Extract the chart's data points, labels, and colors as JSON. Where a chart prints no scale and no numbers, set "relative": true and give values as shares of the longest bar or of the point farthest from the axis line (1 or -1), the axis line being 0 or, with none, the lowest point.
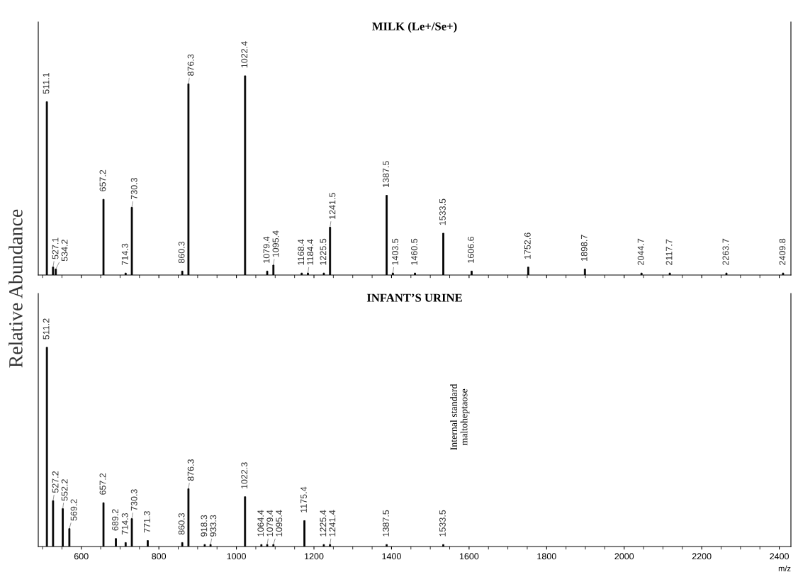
{
  "chart_data": [
    {
      "type": "bar",
      "title": "MILK (Le+/Se+)",
      "ylabel": "Relative Abundance",
      "relative": true,
      "tick_labels": false,
      "xlim": [
        489,
        2430
      ],
      "xticks": [
        {
          "value": 600,
          "label": null
        },
        {
          "value": 800,
          "label": null
        },
        {
          "value": 1000,
          "label": null
        },
        {
          "value": 1200,
          "label": null
        },
        {
          "value": 1400,
          "label": null
        },
        {
          "value": 1600,
          "label": null
        },
        {
          "value": 1800,
          "label": null
        },
        {
          "value": 2000,
          "label": null
        },
        {
          "value": 2200,
          "label": null
        },
        {
          "value": 2400,
          "label": null
        }
      ],
      "color": "#000000",
      "x": [
        511.1,
        527.1,
        534.2,
        657.2,
        714.3,
        730.3,
        860.3,
        876.3,
        1022.4,
        1079.4,
        1095.4,
        1168.4,
        1184.4,
        1225.5,
        1241.5,
        1387.5,
        1403.5,
        1460.5,
        1533.5,
        1606.6,
        1752.6,
        1898.7,
        2044.7,
        2117.7,
        2263.7,
        2409.8
      ],
      "values": [
        0.87,
        0.04,
        0.03,
        0.38,
        0.01,
        0.34,
        0.02,
        0.96,
        1,
        0.02,
        0.05,
        0.01,
        0.01,
        0.01,
        0.24,
        0.4,
        0.01,
        0.01,
        0.21,
        0.02,
        0.04,
        0.03,
        0.01,
        0.01,
        0.01,
        0.01
      ],
      "annotations": [
        {
          "text": "511.1",
          "x": 511.1,
          "y": 0.87
        },
        {
          "text": "527.1",
          "x": 527.1,
          "y": 0.04
        },
        {
          "text": "534.2",
          "x": 534.2,
          "y": 0.03
        },
        {
          "text": "657.2",
          "x": 657.2,
          "y": 0.38
        },
        {
          "text": "714.3",
          "x": 714.3,
          "y": 0.01
        },
        {
          "text": "730.3",
          "x": 730.3,
          "y": 0.34
        },
        {
          "text": "860.3",
          "x": 860.3,
          "y": 0.02
        },
        {
          "text": "876.3",
          "x": 876.3,
          "y": 0.96
        },
        {
          "text": "1022.4",
          "x": 1022.4,
          "y": 1
        },
        {
          "text": "1079.4",
          "x": 1079.4,
          "y": 0.02
        },
        {
          "text": "1095.4",
          "x": 1095.4,
          "y": 0.05
        },
        {
          "text": "1168.4",
          "x": 1168.4,
          "y": 0.01
        },
        {
          "text": "1184.4",
          "x": 1184.4,
          "y": 0.01
        },
        {
          "text": "1225.5",
          "x": 1225.5,
          "y": 0.01
        },
        {
          "text": "1241.5",
          "x": 1241.5,
          "y": 0.24
        },
        {
          "text": "1387.5",
          "x": 1387.5,
          "y": 0.4
        },
        {
          "text": "1403.5",
          "x": 1403.5,
          "y": 0.01
        },
        {
          "text": "1460.5",
          "x": 1460.5,
          "y": 0.01
        },
        {
          "text": "1533.5",
          "x": 1533.5,
          "y": 0.21
        },
        {
          "text": "1606.6",
          "x": 1606.6,
          "y": 0.02
        },
        {
          "text": "1752.6",
          "x": 1752.6,
          "y": 0.04
        },
        {
          "text": "1898.7",
          "x": 1898.7,
          "y": 0.03
        },
        {
          "text": "2044.7",
          "x": 2044.7,
          "y": 0.01
        },
        {
          "text": "2117.7",
          "x": 2117.7,
          "y": 0.01
        },
        {
          "text": "2263.7",
          "x": 2263.7,
          "y": 0.01
        },
        {
          "text": "2409.8",
          "x": 2409.8,
          "y": 0.01
        }
      ]
    },
    {
      "type": "bar",
      "title": "INFANT’S URINE",
      "xlabel": "m/z",
      "relative": true,
      "tick_labels": "x",
      "xlim": [
        489,
        2430
      ],
      "xticks": [
        600,
        800,
        1000,
        1200,
        1400,
        1600,
        1800,
        2000,
        2200,
        2400
      ],
      "color": "#000000",
      "x": [
        511.2,
        527.2,
        552.2,
        569.2,
        657.2,
        689.2,
        714.3,
        730.3,
        771.3,
        860.3,
        876.3,
        918.3,
        933.3,
        1022.3,
        1064.4,
        1079.4,
        1095.4,
        1175.4,
        1225.4,
        1241.4,
        1387.5,
        1533.5
      ],
      "values": [
        1,
        0.23,
        0.19,
        0.09,
        0.22,
        0.04,
        0.02,
        0.14,
        0.03,
        0.02,
        0.29,
        0.01,
        0.01,
        0.25,
        0.01,
        0.01,
        0.01,
        0.13,
        0.01,
        0.01,
        0.01,
        0.01
      ],
      "annotations": [
        {
          "text": "511.2",
          "x": 511.2,
          "y": 1
        },
        {
          "text": "527.2",
          "x": 527.2,
          "y": 0.23
        },
        {
          "text": "552.2",
          "x": 552.2,
          "y": 0.19
        },
        {
          "text": "569.2",
          "x": 569.2,
          "y": 0.09
        },
        {
          "text": "657.2",
          "x": 657.2,
          "y": 0.22
        },
        {
          "text": "689.2",
          "x": 689.2,
          "y": 0.04
        },
        {
          "text": "714.3",
          "x": 714.3,
          "y": 0.02
        },
        {
          "text": "730.3",
          "x": 730.3,
          "y": 0.14
        },
        {
          "text": "771.3",
          "x": 771.3,
          "y": 0.03
        },
        {
          "text": "860.3",
          "x": 860.3,
          "y": 0.02
        },
        {
          "text": "876.3",
          "x": 876.3,
          "y": 0.29
        },
        {
          "text": "918.3",
          "x": 918.3,
          "y": 0.01
        },
        {
          "text": "933.3",
          "x": 933.3,
          "y": 0.01
        },
        {
          "text": "1022.3",
          "x": 1022.3,
          "y": 0.25
        },
        {
          "text": "1064.4",
          "x": 1064.4,
          "y": 0.01
        },
        {
          "text": "1079.4",
          "x": 1079.4,
          "y": 0.01
        },
        {
          "text": "1095.4",
          "x": 1095.4,
          "y": 0.01
        },
        {
          "text": "1175.4",
          "x": 1175.4,
          "y": 0.13
        },
        {
          "text": "1225.4",
          "x": 1225.4,
          "y": 0.01
        },
        {
          "text": "1241.4",
          "x": 1241.4,
          "y": 0.01
        },
        {
          "text": "1387.5",
          "x": 1387.5,
          "y": 0.01
        },
        {
          "text": "1533.5",
          "x": 1533.5,
          "y": 0.01
        },
        "Internal standard\nmaltoheptaose"
      ]
    }
  ]
}
